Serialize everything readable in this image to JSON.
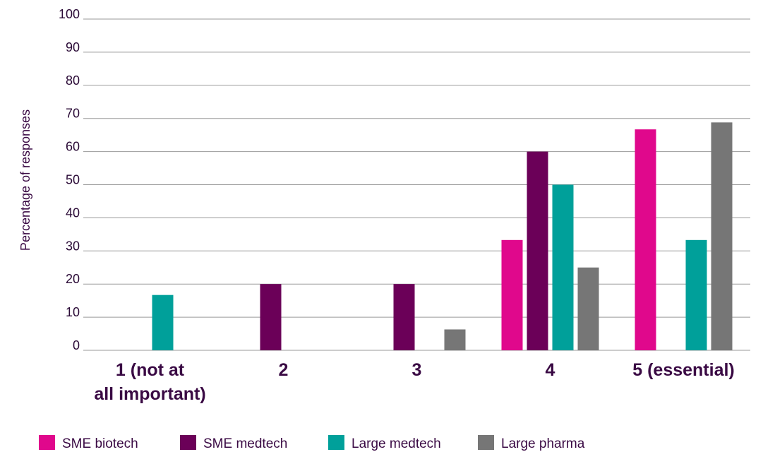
{
  "chart_data": {
    "type": "bar",
    "title": "",
    "xlabel": "",
    "ylabel": "Percentage of responses",
    "ylim": [
      0,
      100
    ],
    "yticks": [
      0,
      10,
      20,
      30,
      40,
      50,
      60,
      70,
      80,
      90,
      100
    ],
    "grid": true,
    "legend_position": "bottom",
    "categories": [
      [
        "1 (not at",
        "all important)"
      ],
      [
        "2"
      ],
      [
        "3"
      ],
      [
        "4"
      ],
      [
        "5 (essential)"
      ]
    ],
    "series": [
      {
        "name": "SME biotech",
        "color": "#e0088c",
        "values": [
          0,
          0,
          0,
          33.3,
          66.7
        ]
      },
      {
        "name": "SME medtech",
        "color": "#6b0058",
        "values": [
          0,
          20,
          20,
          60,
          0
        ]
      },
      {
        "name": "Large medtech",
        "color": "#00a09a",
        "values": [
          16.7,
          0,
          0,
          50,
          33.3
        ]
      },
      {
        "name": "Large pharma",
        "color": "#767676",
        "values": [
          0,
          0,
          6.3,
          25,
          68.8
        ]
      }
    ]
  }
}
